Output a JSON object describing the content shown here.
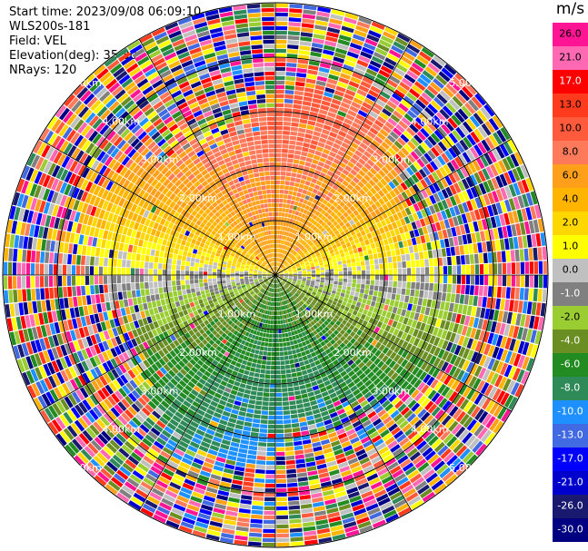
{
  "header": {
    "start_time": "Start time: 2023/09/08 06:09:10",
    "instrument": "WLS200s-181",
    "field": "Field: VEL",
    "elevation": "Elevation(deg): 35.30",
    "nrays": "NRays: 120"
  },
  "colorbar": {
    "unit": "m/s",
    "ticks": [
      "26.0",
      "21.0",
      "17.0",
      "13.0",
      "10.0",
      "8.0",
      "6.0",
      "4.0",
      "2.0",
      "1.0",
      "0.0",
      "-1.0",
      "-2.0",
      "-4.0",
      "-6.0",
      "-8.0",
      "-10.0",
      "-13.0",
      "-17.0",
      "-21.0",
      "-26.0",
      "-30.0"
    ],
    "colors": [
      "#ff1493",
      "#ff69b4",
      "#ff0000",
      "#ff3b1e",
      "#ff5a3c",
      "#ff7a5a",
      "#ff9f1a",
      "#ffb400",
      "#ffd700",
      "#ffff00",
      "#c0c0c0",
      "#808080",
      "#9acd32",
      "#6b8e23",
      "#228b22",
      "#2e8b57",
      "#1e90ff",
      "#4169e1",
      "#0000ff",
      "#0000cd",
      "#191970",
      "#000080"
    ]
  },
  "chart_data": {
    "type": "heatmap",
    "projection": "polar-ppi",
    "n_rays": 120,
    "max_range_km": 5,
    "range_ring_labels": [
      "1.00km",
      "2.00km",
      "3.00km",
      "4.00km",
      "5.00km"
    ],
    "range_rings_km": [
      1,
      2,
      3,
      4,
      5
    ],
    "spokes_deg": [
      0,
      30,
      60,
      90,
      120,
      150,
      180,
      210,
      240,
      270,
      300,
      330
    ],
    "velocity_pattern": {
      "near_range_limit_km": 3.2,
      "north_sector_ms": 8.0,
      "south_sector_ms": -8.0,
      "far_range": "noise"
    }
  }
}
